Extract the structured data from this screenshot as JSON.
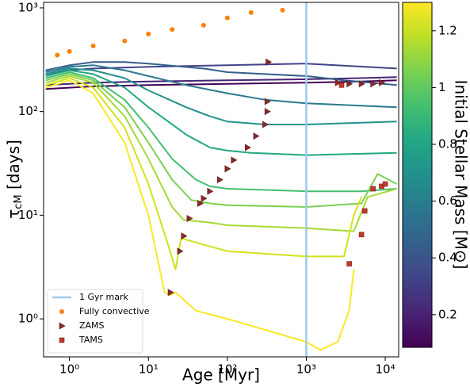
{
  "chart_data": {
    "type": "line",
    "xlabel": "Age [Myr]",
    "ylabel_main": "τ",
    "ylabel_sub": "cM",
    "ylabel_unit": " [days]",
    "xscale": "log",
    "yscale": "log",
    "xlim": [
      0.47,
      14800
    ],
    "ylim": [
      0.43,
      1130
    ],
    "xticks": [
      {
        "value": 1,
        "label": "10⁰"
      },
      {
        "value": 10,
        "label": "10¹"
      },
      {
        "value": 100,
        "label": "10²"
      },
      {
        "value": 1000,
        "label": "10³"
      },
      {
        "value": 10000,
        "label": "10⁴"
      }
    ],
    "yticks": [
      {
        "value": 1,
        "label": "10⁰"
      },
      {
        "value": 10,
        "label": "10¹"
      },
      {
        "value": 100,
        "label": "10²"
      },
      {
        "value": 1000,
        "label": "10³"
      }
    ],
    "series": [
      {
        "color": "#440154",
        "x": [
          0.5,
          2,
          10,
          100,
          1000,
          5000,
          14000
        ],
        "values": [
          165,
          175,
          180,
          185,
          190,
          195,
          200
        ]
      },
      {
        "color": "#482475",
        "x": [
          0.5,
          2,
          10,
          100,
          1000,
          5000,
          14000
        ],
        "values": [
          180,
          190,
          195,
          200,
          205,
          210,
          215
        ]
      },
      {
        "color": "#414487",
        "x": [
          0.5,
          1,
          2,
          10,
          100,
          1000,
          14000
        ],
        "values": [
          230,
          250,
          260,
          270,
          280,
          290,
          260
        ]
      },
      {
        "color": "#355f8d",
        "x": [
          0.5,
          1,
          2,
          5,
          10,
          50,
          100,
          300,
          1000,
          3000,
          14000
        ],
        "values": [
          250,
          280,
          300,
          300,
          290,
          260,
          240,
          230,
          220,
          200,
          180
        ]
      },
      {
        "color": "#2a788e",
        "x": [
          0.5,
          1,
          2,
          5,
          10,
          30,
          100,
          300,
          1000,
          14000
        ],
        "values": [
          240,
          270,
          280,
          250,
          220,
          180,
          150,
          130,
          120,
          110
        ]
      },
      {
        "color": "#21918c",
        "x": [
          0.5,
          1,
          2,
          5,
          10,
          30,
          60,
          100,
          300,
          1000,
          14000
        ],
        "values": [
          230,
          260,
          250,
          210,
          160,
          110,
          90,
          80,
          75,
          75,
          80
        ]
      },
      {
        "color": "#22a884",
        "x": [
          0.5,
          1,
          2,
          5,
          10,
          30,
          60,
          100,
          200,
          1000,
          14000
        ],
        "values": [
          220,
          250,
          230,
          170,
          110,
          60,
          45,
          42,
          40,
          38,
          40
        ]
      },
      {
        "color": "#44bf70",
        "x": [
          0.5,
          1,
          2,
          5,
          10,
          20,
          40,
          60,
          100,
          1000,
          5000,
          14000
        ],
        "values": [
          210,
          240,
          210,
          130,
          70,
          35,
          22,
          19,
          18,
          17,
          17,
          18
        ]
      },
      {
        "color": "#7ad151",
        "x": [
          0.5,
          1,
          2,
          5,
          10,
          20,
          35,
          60,
          100,
          1000,
          5000,
          8000,
          14000
        ],
        "values": [
          200,
          230,
          200,
          110,
          50,
          22,
          14,
          13,
          12.5,
          12,
          13,
          25,
          20
        ]
      },
      {
        "color": "#a5db36",
        "x": [
          0.5,
          1,
          2,
          5,
          10,
          20,
          28,
          60,
          100,
          1000,
          4000,
          6000,
          14000
        ],
        "values": [
          190,
          220,
          190,
          90,
          35,
          12,
          9,
          8.5,
          8,
          7.5,
          7,
          15,
          18
        ]
      },
      {
        "color": "#d2e21b",
        "x": [
          0.5,
          1,
          2,
          5,
          10,
          18,
          22,
          26,
          60,
          100,
          1000,
          3000,
          4000,
          5000
        ],
        "values": [
          180,
          210,
          170,
          70,
          20,
          5,
          3,
          6,
          5,
          4.5,
          4,
          4,
          10,
          15
        ]
      },
      {
        "color": "#fde725",
        "x": [
          0.5,
          1,
          2,
          5,
          10,
          16,
          19,
          22,
          40,
          100,
          1000,
          1500,
          2500,
          3500,
          4000
        ],
        "values": [
          170,
          200,
          150,
          50,
          10,
          1.8,
          1.7,
          1.8,
          1.2,
          1.0,
          0.6,
          0.5,
          0.6,
          1.2,
          3
        ]
      }
    ],
    "vline": {
      "name": "1 Gyr mark",
      "x": 1000,
      "color": "#9ecae9"
    },
    "markers": [
      {
        "name": "Fully convective",
        "marker": "circle",
        "color": "#ff7f0e",
        "x": [
          0.7,
          1,
          2,
          5,
          10,
          20,
          50,
          100,
          200,
          500
        ],
        "values": [
          350,
          380,
          430,
          480,
          560,
          620,
          680,
          800,
          900,
          950
        ]
      },
      {
        "name": "ZAMS",
        "marker": "triangle",
        "color": "#8b2a2a",
        "x": [
          19,
          25,
          28,
          33,
          45,
          50,
          60,
          80,
          100,
          120,
          180,
          230,
          300,
          320,
          320,
          330,
          2500,
          3500,
          5000,
          7000,
          9000
        ],
        "values": [
          1.8,
          4.5,
          6.3,
          9.3,
          13,
          14.5,
          17,
          22,
          28,
          34,
          45,
          58,
          75,
          100,
          125,
          300,
          190,
          185,
          185,
          185,
          190
        ]
      },
      {
        "name": "TAMS",
        "marker": "square",
        "color": "#c0392b",
        "x": [
          3500,
          5000,
          5500,
          7000,
          9000,
          10000,
          2800
        ],
        "values": [
          3.4,
          6.5,
          11,
          18,
          19,
          20,
          180
        ]
      }
    ],
    "colorbar": {
      "label": "Initial Stellar Mass [M⊙]",
      "lim": [
        0.085,
        1.3
      ],
      "ticks": [
        0.2,
        0.4,
        0.6,
        0.8,
        1.0,
        1.2
      ],
      "colors": [
        "#440154",
        "#482475",
        "#414487",
        "#355f8d",
        "#2a788e",
        "#21918c",
        "#22a884",
        "#44bf70",
        "#7ad151",
        "#bddf26",
        "#fde725"
      ]
    }
  }
}
